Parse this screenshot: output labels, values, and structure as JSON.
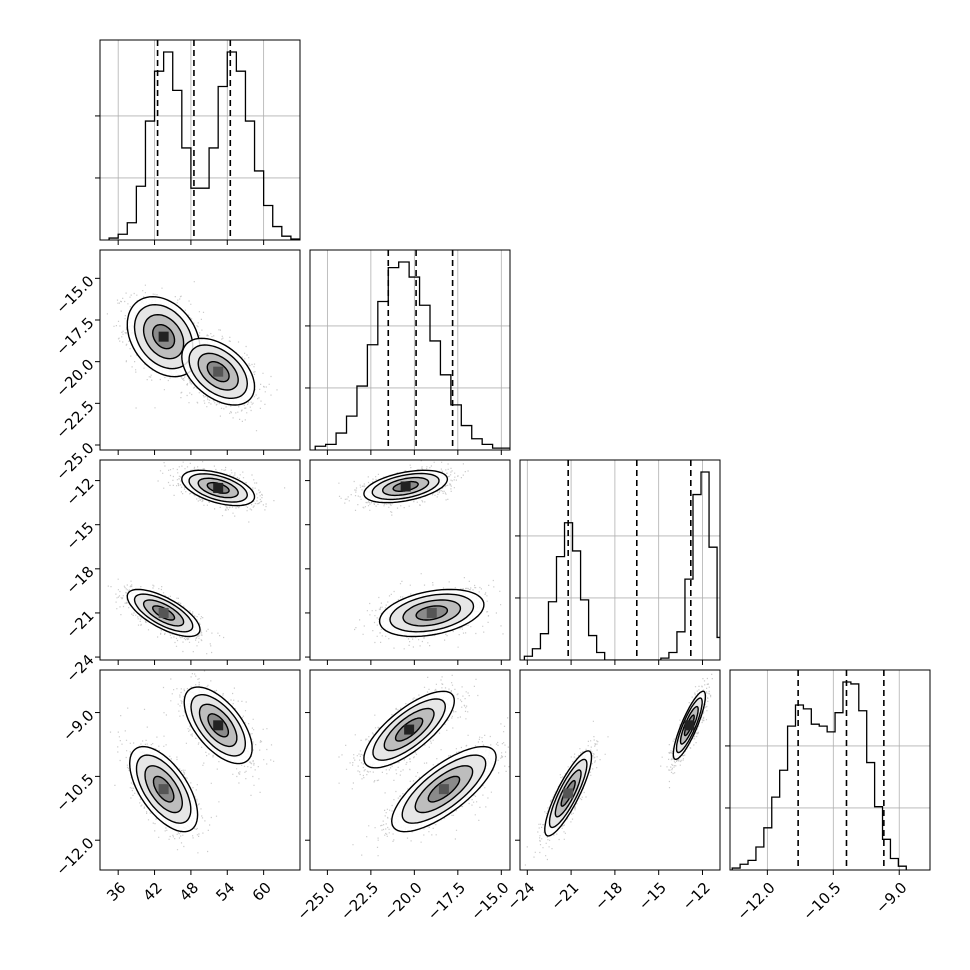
{
  "chart_data": {
    "type": "corner",
    "title": "",
    "grid": true,
    "colors": {
      "contour": "#000000",
      "quantile_line": "#000000",
      "grid": "#b0b0b0",
      "scatter": "#444444"
    },
    "params": [
      {
        "key": "p1",
        "xlim": [
          33,
          66
        ],
        "xticks": [
          36,
          42,
          48,
          54,
          60
        ],
        "xtick_labels": [
          "36",
          "42",
          "48",
          "54",
          "60"
        ],
        "yticks": [],
        "ytick_labels": [],
        "quantiles": [
          42.5,
          48.5,
          54.5
        ],
        "hist": {
          "min": 34.5,
          "step": 1.5,
          "counts": [
            0.01,
            0.03,
            0.09,
            0.28,
            0.62,
            0.88,
            0.98,
            0.78,
            0.48,
            0.27,
            0.27,
            0.48,
            0.8,
            0.98,
            0.88,
            0.62,
            0.36,
            0.18,
            0.07,
            0.02,
            0.005,
            0.002,
            0.001
          ]
        }
      },
      {
        "key": "p2",
        "xlim": [
          -26.0,
          -14.5
        ],
        "xticks": [
          -25.0,
          -22.5,
          -20.0,
          -17.5,
          -15.0
        ],
        "xtick_labels": [
          "−25.0",
          "−22.5",
          "−20.0",
          "−17.5",
          "−15.0"
        ],
        "ylim": [
          -25.3,
          -13.3
        ],
        "yticks": [
          -25.0,
          -22.5,
          -20.0,
          -17.5,
          -15.0
        ],
        "ytick_labels": [
          "−25.0",
          "−22.5",
          "−20.0",
          "−17.5",
          "−15.0"
        ],
        "quantiles": [
          -21.5,
          -19.9,
          -17.8
        ],
        "hist": {
          "min": -25.7,
          "step": 0.6,
          "counts": [
            0.02,
            0.03,
            0.09,
            0.18,
            0.34,
            0.56,
            0.79,
            0.97,
            1.0,
            0.92,
            0.77,
            0.58,
            0.4,
            0.24,
            0.13,
            0.06,
            0.03,
            0.01,
            0.01
          ]
        }
      },
      {
        "key": "p3",
        "xlim": [
          -24.5,
          -10.8
        ],
        "xticks": [
          -24,
          -21,
          -18,
          -15,
          -12
        ],
        "xtick_labels": [
          "−24",
          "−21",
          "−18",
          "−15",
          "−12"
        ],
        "ylim": [
          -24.2,
          -10.6
        ],
        "yticks": [
          -24,
          -21,
          -18,
          -15,
          -12
        ],
        "ytick_labels": [
          "−24",
          "−21",
          "−18",
          "−15",
          "−12"
        ],
        "quantiles": [
          -21.2,
          -16.5,
          -12.8
        ],
        "hist": {
          "min": -24.2,
          "step": 0.55,
          "counts": [
            0.02,
            0.06,
            0.14,
            0.31,
            0.55,
            0.73,
            0.58,
            0.32,
            0.13,
            0.04,
            0.0,
            0.0,
            0.0,
            0.0,
            0.0,
            0.0,
            0.0,
            0.01,
            0.04,
            0.15,
            0.43,
            0.88,
            1.0,
            0.6,
            0.12,
            0.02
          ]
        }
      },
      {
        "key": "p4",
        "xlim": [
          -12.85,
          -8.3
        ],
        "xticks": [
          -12.0,
          -10.5,
          -9.0
        ],
        "xtick_labels": [
          "−12.0",
          "−10.5",
          "−9.0"
        ],
        "ylim": [
          -12.7,
          -8.0
        ],
        "yticks": [
          -12.0,
          -10.5,
          -9.0
        ],
        "ytick_labels": [
          "−12.0",
          "−10.5",
          "−9.0"
        ],
        "quantiles": [
          -11.3,
          -10.2,
          -9.35
        ],
        "hist": {
          "min": -12.8,
          "step": 0.18,
          "counts": [
            0.01,
            0.03,
            0.05,
            0.12,
            0.22,
            0.38,
            0.52,
            0.75,
            0.86,
            0.84,
            0.76,
            0.75,
            0.72,
            0.82,
            0.98,
            0.97,
            0.83,
            0.56,
            0.33,
            0.16,
            0.06,
            0.02
          ]
        }
      }
    ],
    "pair_modes": {
      "1-0": [
        {
          "mean": [
            43.5,
            -18.5
          ],
          "sd": [
            3.0,
            1.2
          ],
          "r": -0.3,
          "n": 1100
        },
        {
          "mean": [
            52.5,
            -20.6
          ],
          "sd": [
            3.0,
            1.0
          ],
          "r": -0.45,
          "n": 1100
        }
      ],
      "2-0": [
        {
          "mean": [
            52.5,
            -12.5
          ],
          "sd": [
            3.0,
            0.6
          ],
          "r": -0.5,
          "n": 1100
        },
        {
          "mean": [
            43.5,
            -21.0
          ],
          "sd": [
            3.0,
            0.8
          ],
          "r": -0.7,
          "n": 1100
        }
      ],
      "2-1": [
        {
          "mean": [
            -20.5,
            -12.4
          ],
          "sd": [
            1.2,
            0.55
          ],
          "r": 0.45,
          "n": 1100
        },
        {
          "mean": [
            -19.0,
            -21.0
          ],
          "sd": [
            1.5,
            0.8
          ],
          "r": 0.35,
          "n": 1100
        }
      ],
      "3-0": [
        {
          "mean": [
            52.5,
            -9.3
          ],
          "sd": [
            2.8,
            0.45
          ],
          "r": -0.6,
          "n": 1100
        },
        {
          "mean": [
            43.5,
            -10.8
          ],
          "sd": [
            2.8,
            0.5
          ],
          "r": -0.6,
          "n": 1100
        }
      ],
      "3-1": [
        {
          "mean": [
            -20.3,
            -9.4
          ],
          "sd": [
            1.3,
            0.45
          ],
          "r": 0.75,
          "n": 1100
        },
        {
          "mean": [
            -18.3,
            -10.8
          ],
          "sd": [
            1.5,
            0.5
          ],
          "r": 0.75,
          "n": 1100
        }
      ],
      "3-2": [
        {
          "mean": [
            -12.9,
            -9.3
          ],
          "sd": [
            0.55,
            0.4
          ],
          "r": 0.85,
          "n": 1100
        },
        {
          "mean": [
            -21.2,
            -10.9
          ],
          "sd": [
            0.8,
            0.5
          ],
          "r": 0.85,
          "n": 1100
        }
      ]
    }
  }
}
